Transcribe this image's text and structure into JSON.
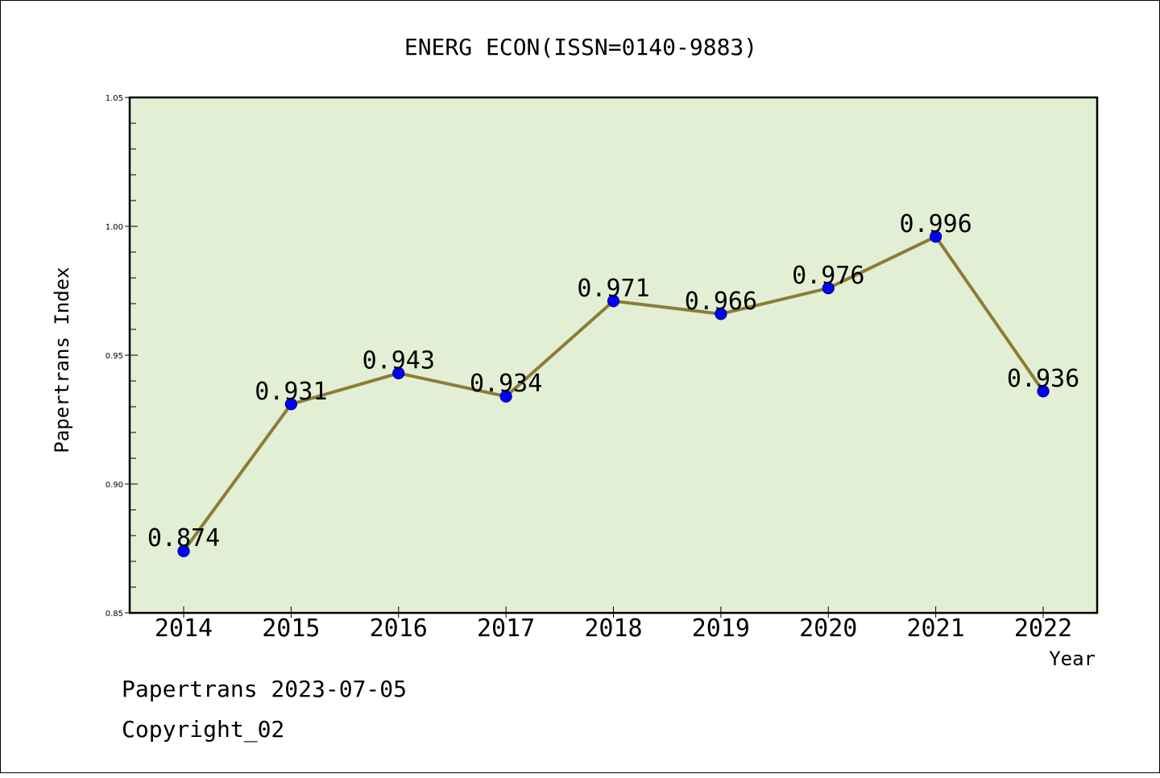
{
  "chart_data": {
    "type": "line",
    "title": "ENERG ECON(ISSN=0140-9883)",
    "xlabel": "Year",
    "ylabel": "Papertrans Index",
    "categories": [
      "2014",
      "2015",
      "2016",
      "2017",
      "2018",
      "2019",
      "2020",
      "2021",
      "2022"
    ],
    "series": [
      {
        "values": [
          0.874,
          0.931,
          0.943,
          0.934,
          0.971,
          0.966,
          0.976,
          0.996,
          0.936
        ],
        "labels": [
          "0.874",
          "0.931",
          "0.943",
          "0.934",
          "0.971",
          "0.966",
          "0.976",
          "0.996",
          "0.936"
        ]
      }
    ],
    "ylim": [
      0.85,
      1.05
    ],
    "yticks": [
      "0.85",
      "0.90",
      "0.95",
      "1.00",
      "1.05"
    ],
    "grid": false,
    "colors": {
      "plot_background": "#e2efd5",
      "line": "#8b7d35",
      "marker": "#0000ff",
      "marker_edge": "#00008b"
    }
  },
  "footer": {
    "line1": "Papertrans 2023-07-05",
    "line2": "Copyright_02"
  }
}
